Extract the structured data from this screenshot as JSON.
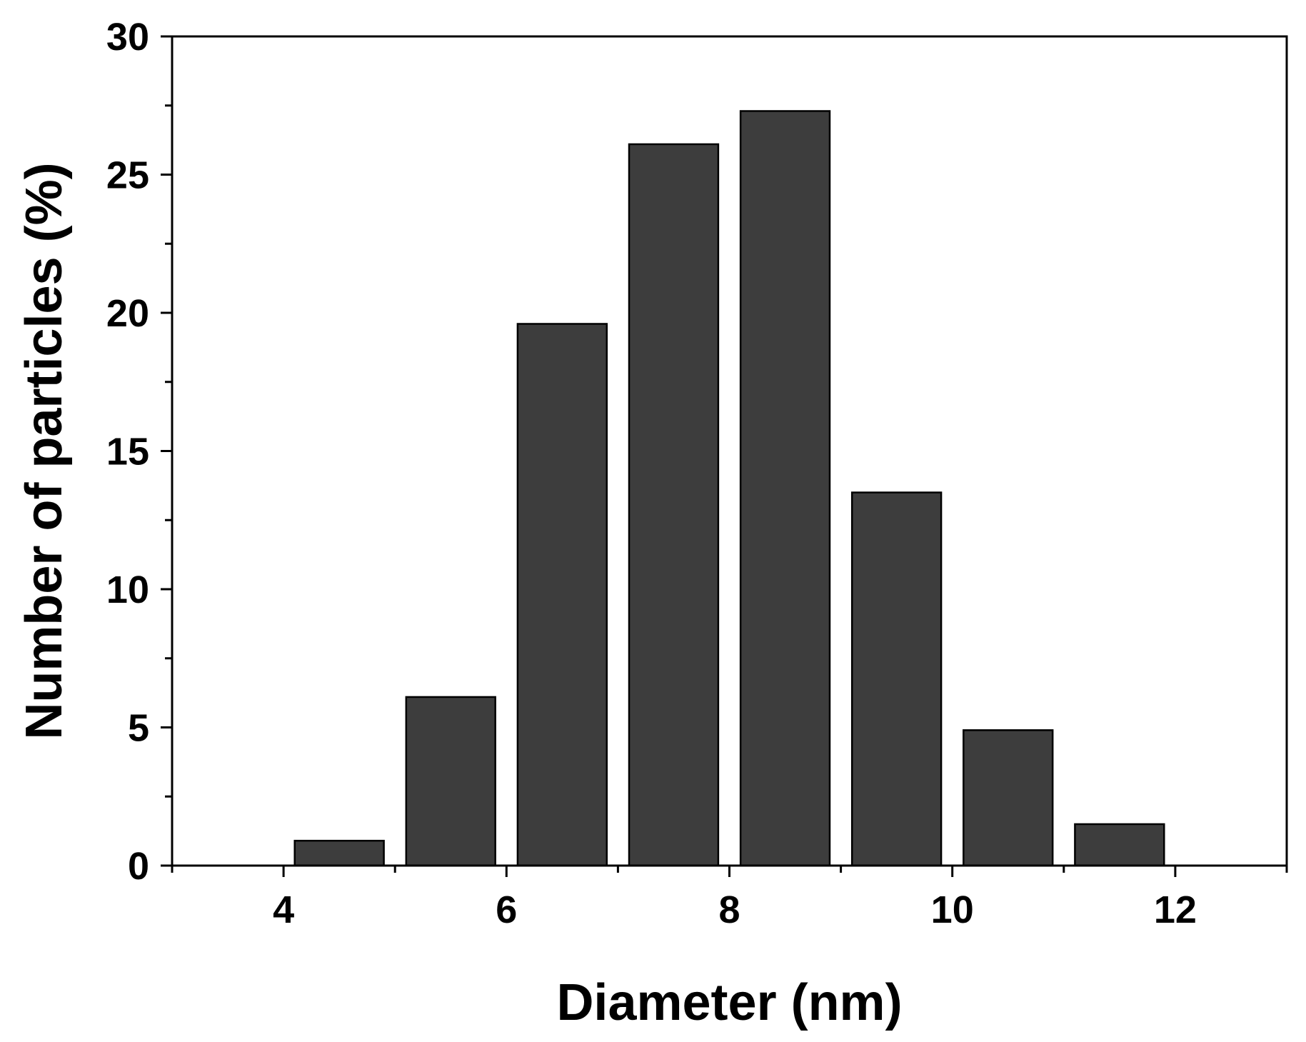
{
  "chart_data": {
    "type": "bar",
    "title": "",
    "xlabel": "Diameter (nm)",
    "ylabel": "Number of particles (%)",
    "x": [
      4.5,
      5.5,
      6.5,
      7.5,
      8.5,
      9.5,
      10.5,
      11.5
    ],
    "values": [
      0.9,
      6.1,
      19.6,
      26.1,
      27.3,
      13.5,
      4.9,
      1.5
    ],
    "bin_width": 1,
    "xlim": [
      3,
      13
    ],
    "ylim": [
      0,
      30
    ],
    "x_ticks": [
      4,
      6,
      8,
      10,
      12
    ],
    "x_tick_labels": [
      "4",
      "6",
      "8",
      "10",
      "12"
    ],
    "y_ticks": [
      0,
      5,
      10,
      15,
      20,
      25,
      30
    ],
    "y_tick_labels": [
      "0",
      "5",
      "10",
      "15",
      "20",
      "25",
      "30"
    ],
    "grid": false,
    "legend": "none",
    "colors": {
      "bar_fill": "#3d3d3d",
      "bar_stroke": "#000000",
      "axis": "#000000"
    }
  }
}
